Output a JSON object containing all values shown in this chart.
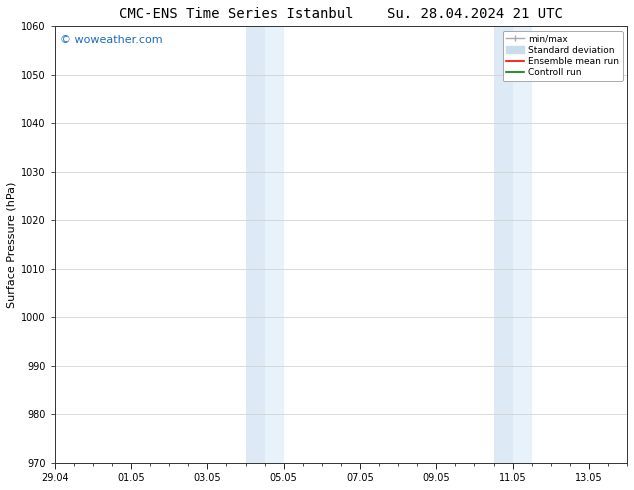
{
  "title_left": "CMC-ENS Time Series Istanbul",
  "title_right": "Su. 28.04.2024 21 UTC",
  "ylabel": "Surface Pressure (hPa)",
  "ylim": [
    970,
    1060
  ],
  "yticks": [
    970,
    980,
    990,
    1000,
    1010,
    1020,
    1030,
    1040,
    1050,
    1060
  ],
  "xtick_labels": [
    "29.04",
    "01.05",
    "03.05",
    "05.05",
    "07.05",
    "09.05",
    "11.05",
    "13.05"
  ],
  "xtick_positions_days": [
    0,
    2,
    4,
    6,
    8,
    10,
    12,
    14
  ],
  "total_days": 15,
  "shaded_regions": [
    {
      "start_day": 5.0,
      "end_day": 5.5,
      "color": "#ddeaf5"
    },
    {
      "start_day": 5.5,
      "end_day": 6.0,
      "color": "#e8f2fa"
    },
    {
      "start_day": 11.5,
      "end_day": 12.0,
      "color": "#ddeaf5"
    },
    {
      "start_day": 12.0,
      "end_day": 12.5,
      "color": "#e8f2fa"
    }
  ],
  "background_color": "#ffffff",
  "watermark_text": "© woweather.com",
  "watermark_color": "#1a6bc4",
  "legend_entries": [
    {
      "label": "min/max",
      "color": "#aaaaaa",
      "lw": 1.5
    },
    {
      "label": "Standard deviation",
      "color": "#c8dcea",
      "lw": 8
    },
    {
      "label": "Ensemble mean run",
      "color": "#ff0000",
      "lw": 1.5
    },
    {
      "label": "Controll run",
      "color": "#008000",
      "lw": 1.5
    }
  ],
  "title_fontsize": 10,
  "axis_fontsize": 8,
  "tick_fontsize": 7,
  "fig_width": 6.34,
  "fig_height": 4.9,
  "dpi": 100
}
